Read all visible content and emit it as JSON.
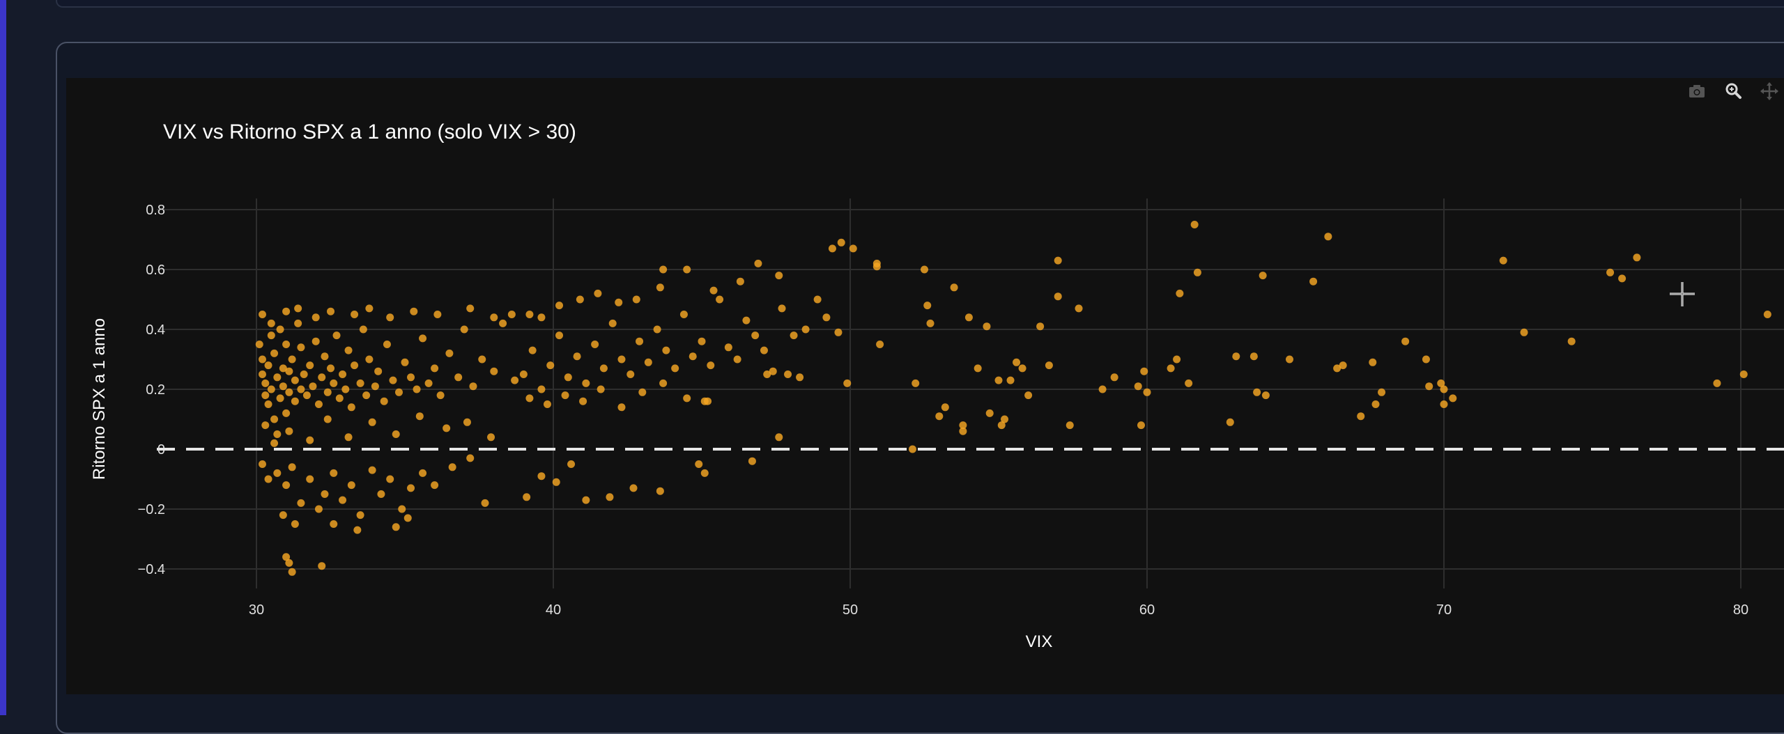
{
  "modebar": {
    "camera": "camera-icon",
    "zoom": "zoom-icon",
    "pan": "pan-icon"
  },
  "chart_data": {
    "type": "scatter",
    "title": "VIX vs Ritorno SPX a 1 anno (solo VIX > 30)",
    "xlabel": "VIX",
    "ylabel": "Ritorno SPX a 1 anno",
    "xlim": [
      27,
      82
    ],
    "ylim": [
      -0.44,
      0.83
    ],
    "xticks": [
      30,
      40,
      50,
      60,
      70,
      80
    ],
    "yticks": [
      0.8,
      0.6,
      0.4,
      0.2,
      0,
      -0.2,
      -0.4
    ],
    "ytick_labels": [
      "0.8",
      "0.6",
      "0.4",
      "0.2",
      "0",
      "−0.2",
      "−0.4"
    ],
    "grid": true,
    "reference_line": {
      "y": 0,
      "style": "dashed",
      "color": "#ffffff"
    },
    "marker_color": "#f5a623",
    "points": [
      [
        30.1,
        0.35
      ],
      [
        30.2,
        0.3
      ],
      [
        30.2,
        0.25
      ],
      [
        30.3,
        0.22
      ],
      [
        30.3,
        0.18
      ],
      [
        30.4,
        0.28
      ],
      [
        30.4,
        0.15
      ],
      [
        30.5,
        0.38
      ],
      [
        30.5,
        0.2
      ],
      [
        30.6,
        0.1
      ],
      [
        30.6,
        0.32
      ],
      [
        30.7,
        0.24
      ],
      [
        30.7,
        0.05
      ],
      [
        30.8,
        0.4
      ],
      [
        30.8,
        0.17
      ],
      [
        30.9,
        0.27
      ],
      [
        30.9,
        0.21
      ],
      [
        31.0,
        0.12
      ],
      [
        31.0,
        0.35
      ],
      [
        31.1,
        0.19
      ],
      [
        31.1,
        0.26
      ],
      [
        31.2,
        0.3
      ],
      [
        31.3,
        0.23
      ],
      [
        31.3,
        0.16
      ],
      [
        31.4,
        0.42
      ],
      [
        31.5,
        0.2
      ],
      [
        31.5,
        0.34
      ],
      [
        31.6,
        0.25
      ],
      [
        31.7,
        0.18
      ],
      [
        31.8,
        0.28
      ],
      [
        31.9,
        0.21
      ],
      [
        32.0,
        0.36
      ],
      [
        32.1,
        0.15
      ],
      [
        32.2,
        0.24
      ],
      [
        32.3,
        0.31
      ],
      [
        32.4,
        0.19
      ],
      [
        32.5,
        0.27
      ],
      [
        32.6,
        0.22
      ],
      [
        32.7,
        0.38
      ],
      [
        32.8,
        0.17
      ],
      [
        32.9,
        0.25
      ],
      [
        33.0,
        0.2
      ],
      [
        33.1,
        0.33
      ],
      [
        33.2,
        0.14
      ],
      [
        33.3,
        0.28
      ],
      [
        33.5,
        0.22
      ],
      [
        33.6,
        0.4
      ],
      [
        33.7,
        0.18
      ],
      [
        33.8,
        0.3
      ],
      [
        34.0,
        0.21
      ],
      [
        34.1,
        0.26
      ],
      [
        34.3,
        0.16
      ],
      [
        34.4,
        0.35
      ],
      [
        34.6,
        0.23
      ],
      [
        34.8,
        0.19
      ],
      [
        35.0,
        0.29
      ],
      [
        35.2,
        0.24
      ],
      [
        35.4,
        0.2
      ],
      [
        35.6,
        0.37
      ],
      [
        35.8,
        0.22
      ],
      [
        36.0,
        0.27
      ],
      [
        36.2,
        0.18
      ],
      [
        36.5,
        0.32
      ],
      [
        36.8,
        0.24
      ],
      [
        37.0,
        0.4
      ],
      [
        37.3,
        0.21
      ],
      [
        37.6,
        0.3
      ],
      [
        38.0,
        0.26
      ],
      [
        38.3,
        0.42
      ],
      [
        38.7,
        0.23
      ],
      [
        30.2,
        0.45
      ],
      [
        30.5,
        0.42
      ],
      [
        31.0,
        0.46
      ],
      [
        31.4,
        0.47
      ],
      [
        32.0,
        0.44
      ],
      [
        32.5,
        0.46
      ],
      [
        33.3,
        0.45
      ],
      [
        33.8,
        0.47
      ],
      [
        34.5,
        0.44
      ],
      [
        35.3,
        0.46
      ],
      [
        36.1,
        0.45
      ],
      [
        37.2,
        0.47
      ],
      [
        38.0,
        0.44
      ],
      [
        38.6,
        0.45
      ],
      [
        39.2,
        0.45
      ],
      [
        39.6,
        0.44
      ],
      [
        30.3,
        0.08
      ],
      [
        30.6,
        0.02
      ],
      [
        31.1,
        0.06
      ],
      [
        31.8,
        0.03
      ],
      [
        32.4,
        0.1
      ],
      [
        33.1,
        0.04
      ],
      [
        33.9,
        0.09
      ],
      [
        34.7,
        0.05
      ],
      [
        35.5,
        0.11
      ],
      [
        36.4,
        0.07
      ],
      [
        37.1,
        0.09
      ],
      [
        37.9,
        0.04
      ],
      [
        30.2,
        -0.05
      ],
      [
        30.4,
        -0.1
      ],
      [
        30.7,
        -0.08
      ],
      [
        31.0,
        -0.12
      ],
      [
        31.2,
        -0.06
      ],
      [
        31.5,
        -0.18
      ],
      [
        31.8,
        -0.1
      ],
      [
        32.1,
        -0.2
      ],
      [
        32.3,
        -0.15
      ],
      [
        32.6,
        -0.08
      ],
      [
        32.9,
        -0.17
      ],
      [
        33.2,
        -0.12
      ],
      [
        33.5,
        -0.22
      ],
      [
        33.9,
        -0.07
      ],
      [
        34.2,
        -0.15
      ],
      [
        34.5,
        -0.1
      ],
      [
        34.9,
        -0.2
      ],
      [
        35.2,
        -0.13
      ],
      [
        35.6,
        -0.08
      ],
      [
        36.0,
        -0.12
      ],
      [
        36.6,
        -0.06
      ],
      [
        37.2,
        -0.03
      ],
      [
        30.9,
        -0.22
      ],
      [
        31.3,
        -0.25
      ],
      [
        32.6,
        -0.25
      ],
      [
        33.4,
        -0.27
      ],
      [
        34.7,
        -0.26
      ],
      [
        35.1,
        -0.23
      ],
      [
        31.0,
        -0.36
      ],
      [
        31.1,
        -0.38
      ],
      [
        31.2,
        -0.41
      ],
      [
        32.2,
        -0.39
      ],
      [
        37.7,
        -0.18
      ],
      [
        39.1,
        -0.16
      ],
      [
        39.6,
        -0.09
      ],
      [
        40.1,
        -0.11
      ],
      [
        40.6,
        -0.05
      ],
      [
        41.1,
        -0.17
      ],
      [
        41.9,
        -0.16
      ],
      [
        42.7,
        -0.13
      ],
      [
        43.6,
        -0.14
      ],
      [
        44.9,
        -0.05
      ],
      [
        45.1,
        -0.08
      ],
      [
        46.7,
        -0.04
      ],
      [
        39.0,
        0.25
      ],
      [
        39.3,
        0.33
      ],
      [
        39.6,
        0.2
      ],
      [
        39.9,
        0.28
      ],
      [
        40.2,
        0.38
      ],
      [
        40.5,
        0.24
      ],
      [
        40.8,
        0.31
      ],
      [
        41.1,
        0.22
      ],
      [
        41.4,
        0.35
      ],
      [
        41.7,
        0.27
      ],
      [
        42.0,
        0.42
      ],
      [
        42.3,
        0.3
      ],
      [
        42.6,
        0.25
      ],
      [
        42.9,
        0.36
      ],
      [
        43.2,
        0.29
      ],
      [
        43.5,
        0.4
      ],
      [
        43.8,
        0.33
      ],
      [
        44.1,
        0.27
      ],
      [
        44.4,
        0.45
      ],
      [
        44.7,
        0.31
      ],
      [
        45.0,
        0.36
      ],
      [
        45.3,
        0.28
      ],
      [
        45.6,
        0.5
      ],
      [
        45.9,
        0.34
      ],
      [
        46.2,
        0.3
      ],
      [
        46.5,
        0.43
      ],
      [
        46.8,
        0.38
      ],
      [
        47.1,
        0.33
      ],
      [
        47.4,
        0.26
      ],
      [
        47.7,
        0.47
      ],
      [
        39.2,
        0.17
      ],
      [
        39.8,
        0.15
      ],
      [
        40.4,
        0.18
      ],
      [
        41.0,
        0.16
      ],
      [
        41.6,
        0.2
      ],
      [
        42.3,
        0.14
      ],
      [
        43.0,
        0.19
      ],
      [
        43.7,
        0.22
      ],
      [
        44.5,
        0.17
      ],
      [
        45.2,
        0.16
      ],
      [
        40.2,
        0.48
      ],
      [
        40.9,
        0.5
      ],
      [
        41.5,
        0.52
      ],
      [
        42.2,
        0.49
      ],
      [
        42.8,
        0.5
      ],
      [
        43.6,
        0.54
      ],
      [
        43.7,
        0.6
      ],
      [
        44.5,
        0.6
      ],
      [
        45.4,
        0.53
      ],
      [
        46.3,
        0.56
      ],
      [
        46.9,
        0.62
      ],
      [
        47.6,
        0.58
      ],
      [
        48.1,
        0.38
      ],
      [
        48.5,
        0.4
      ],
      [
        48.9,
        0.5
      ],
      [
        49.2,
        0.44
      ],
      [
        49.4,
        0.67
      ],
      [
        49.7,
        0.69
      ],
      [
        50.1,
        0.67
      ],
      [
        49.6,
        0.39
      ],
      [
        49.9,
        0.22
      ],
      [
        50.9,
        0.62
      ],
      [
        50.9,
        0.61
      ],
      [
        51.0,
        0.35
      ],
      [
        47.2,
        0.25
      ],
      [
        47.9,
        0.25
      ],
      [
        48.3,
        0.24
      ],
      [
        47.6,
        0.04
      ],
      [
        45.1,
        0.16
      ],
      [
        52.2,
        0.22
      ],
      [
        52.5,
        0.6
      ],
      [
        52.6,
        0.48
      ],
      [
        52.7,
        0.42
      ],
      [
        53.0,
        0.11
      ],
      [
        53.2,
        0.14
      ],
      [
        53.5,
        0.54
      ],
      [
        53.8,
        0.08
      ],
      [
        53.8,
        0.06
      ],
      [
        54.0,
        0.44
      ],
      [
        54.3,
        0.27
      ],
      [
        54.6,
        0.41
      ],
      [
        54.7,
        0.12
      ],
      [
        55.0,
        0.23
      ],
      [
        55.1,
        0.08
      ],
      [
        55.2,
        0.1
      ],
      [
        55.4,
        0.23
      ],
      [
        55.6,
        0.29
      ],
      [
        55.8,
        0.27
      ],
      [
        56.0,
        0.18
      ],
      [
        56.4,
        0.41
      ],
      [
        56.7,
        0.28
      ],
      [
        57.0,
        0.63
      ],
      [
        57.0,
        0.51
      ],
      [
        57.4,
        0.08
      ],
      [
        57.7,
        0.47
      ],
      [
        58.5,
        0.2
      ],
      [
        58.9,
        0.24
      ],
      [
        59.7,
        0.21
      ],
      [
        59.8,
        0.08
      ],
      [
        59.9,
        0.26
      ],
      [
        60.0,
        0.19
      ],
      [
        60.8,
        0.27
      ],
      [
        61.0,
        0.3
      ],
      [
        61.1,
        0.52
      ],
      [
        61.4,
        0.22
      ],
      [
        61.6,
        0.75
      ],
      [
        61.7,
        0.59
      ],
      [
        62.8,
        0.09
      ],
      [
        63.0,
        0.31
      ],
      [
        63.6,
        0.31
      ],
      [
        63.7,
        0.19
      ],
      [
        63.9,
        0.58
      ],
      [
        64.0,
        0.18
      ],
      [
        64.8,
        0.3
      ],
      [
        65.6,
        0.56
      ],
      [
        66.1,
        0.71
      ],
      [
        66.4,
        0.27
      ],
      [
        66.6,
        0.28
      ],
      [
        67.2,
        0.11
      ],
      [
        67.6,
        0.29
      ],
      [
        67.7,
        0.15
      ],
      [
        67.9,
        0.19
      ],
      [
        68.7,
        0.36
      ],
      [
        69.4,
        0.3
      ],
      [
        69.5,
        0.21
      ],
      [
        69.9,
        0.22
      ],
      [
        70.0,
        0.2
      ],
      [
        70.0,
        0.15
      ],
      [
        70.3,
        0.17
      ],
      [
        52.1,
        0.0
      ],
      [
        72.0,
        0.63
      ],
      [
        72.7,
        0.39
      ],
      [
        74.3,
        0.36
      ],
      [
        75.6,
        0.59
      ],
      [
        76.0,
        0.57
      ],
      [
        76.5,
        0.64
      ],
      [
        79.2,
        0.22
      ],
      [
        80.1,
        0.25
      ],
      [
        80.9,
        0.45
      ]
    ]
  }
}
